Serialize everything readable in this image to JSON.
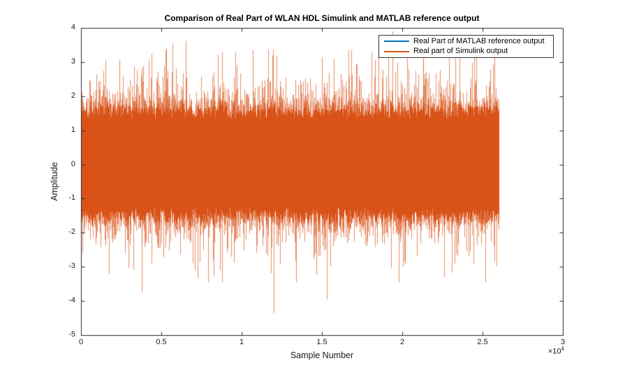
{
  "figure": {
    "background": "#ffffff",
    "axis_color": "#262626",
    "text_color": "#1a1a1a"
  },
  "chart_data": {
    "type": "line",
    "title": "Comparison of Real Part of WLAN HDL Simulink and MATLAB reference output",
    "xlabel": "Sample Number",
    "ylabel": "Amplitude",
    "xlim": [
      0,
      30000
    ],
    "ylim": [
      -5,
      4
    ],
    "grid": false,
    "box": true,
    "ticks_mirrored": true,
    "x_tick_values": [
      0,
      5000,
      10000,
      15000,
      20000,
      25000,
      30000
    ],
    "x_tick_labels": [
      "0",
      "0.5",
      "1",
      "1.5",
      "2",
      "2.5",
      "3"
    ],
    "x_multiplier_base": "×10",
    "x_multiplier_exp": "4",
    "y_tick_values": [
      4,
      3,
      2,
      1,
      0,
      -1,
      -2,
      -3,
      -4,
      -5
    ],
    "y_tick_labels": [
      "4",
      "3",
      "2",
      "1",
      "0",
      "-1",
      "-2",
      "-3",
      "-4",
      "-5"
    ],
    "legend": {
      "position": "northeast",
      "entries": [
        {
          "label": "Real Part of MATLAB reference output",
          "color": "#0072BD"
        },
        {
          "label": "Real part of Simulink output",
          "color": "#D95319"
        }
      ]
    },
    "series": [
      {
        "name": "Real Part of MATLAB reference output",
        "color": "#0072BD",
        "visibility": "fully overlapped by Simulink output trace"
      },
      {
        "name": "Real part of Simulink output",
        "color": "#D95319",
        "light_color_rgba": "rgba(217,83,25,0.66)",
        "signal": {
          "kind": "dense zero-mean noise envelope",
          "sample_start": 0,
          "sample_end": 26000,
          "core_band": [
            -1.6,
            1.65
          ],
          "typical_extent": [
            -3.2,
            3.2
          ],
          "seed": 1337,
          "spikes": [
            {
              "sample": 1500,
              "amplitude": 3.05
            },
            {
              "sample": 3800,
              "amplitude": -3.75
            },
            {
              "sample": 5300,
              "amplitude": 3.4
            },
            {
              "sample": 5700,
              "amplitude": 3.55
            },
            {
              "sample": 6500,
              "amplitude": 3.62
            },
            {
              "sample": 9600,
              "amplitude": 3.3
            },
            {
              "sample": 12000,
              "amplitude": -4.35
            },
            {
              "sample": 15300,
              "amplitude": -3.95
            },
            {
              "sample": 19400,
              "amplitude": 3.9
            },
            {
              "sample": 21300,
              "amplitude": 3.45
            },
            {
              "sample": 22600,
              "amplitude": -3.3
            },
            {
              "sample": 23300,
              "amplitude": 3.3
            }
          ]
        }
      }
    ]
  }
}
